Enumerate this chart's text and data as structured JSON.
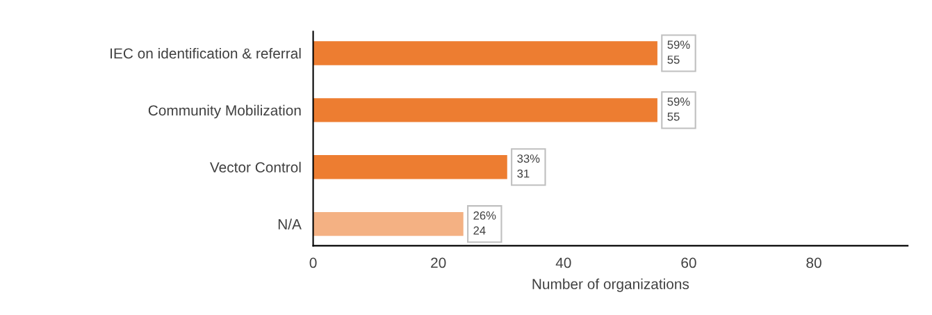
{
  "chart_data": {
    "type": "bar",
    "orientation": "horizontal",
    "xlabel": "Number of organizations",
    "categories": [
      "IEC on identification & referral",
      "Community Mobilization",
      "Vector Control",
      "N/A"
    ],
    "values": [
      55,
      55,
      31,
      24
    ],
    "colors": [
      "#ed7d31",
      "#ed7d31",
      "#ed7d31",
      "#f4b183"
    ],
    "value_labels": [
      "59%\n55",
      "59%\n55",
      "33%\n31",
      "26%\n24"
    ],
    "xlim": [
      0,
      95
    ],
    "xticks": [
      0,
      20,
      40,
      60,
      80
    ],
    "grid": false,
    "legend": false
  }
}
